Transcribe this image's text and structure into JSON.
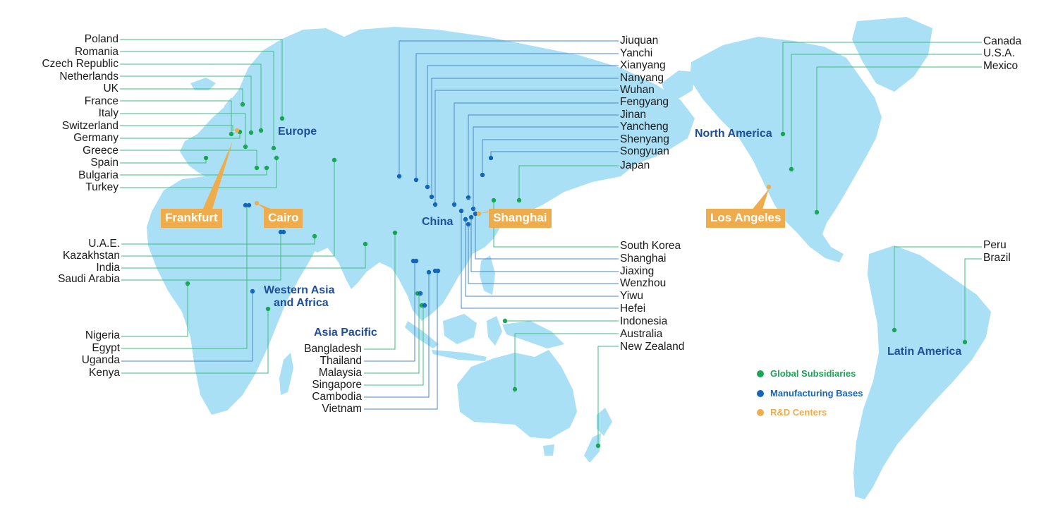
{
  "colors": {
    "ocean": "#ffffff",
    "land": "#a9e0f6",
    "subsidiary": "#1aa657",
    "manufacturing": "#1466b8",
    "rd": "#eeac4c",
    "leader_line_green": "#3dbb7f",
    "leader_line_blue": "#4a86c6",
    "region_text": "#1f4f9a"
  },
  "regions": {
    "europe": "Europe",
    "north_america": "North America",
    "china": "China",
    "western_asia_africa_line1": "Western Asia",
    "western_asia_africa_line2": "and Africa",
    "asia_pacific": "Asia Pacific",
    "latin_america": "Latin America"
  },
  "rd_centers": {
    "frankfurt": "Frankfurt",
    "cairo": "Cairo",
    "shanghai": "Shanghai",
    "los_angeles": "Los Angeles"
  },
  "europe_labels": [
    "Poland",
    "Romania",
    "Czech Republic",
    "Netherlands",
    "UK",
    "France",
    "Italy",
    "Switzerland",
    "Germany",
    "Greece",
    "Spain",
    "Bulgaria",
    "Turkey"
  ],
  "mideast_labels": [
    "U.A.E.",
    "Kazakhstan",
    "India",
    "Saudi Arabia"
  ],
  "africa_labels": [
    "Nigeria",
    "Egypt",
    "Uganda",
    "Kenya"
  ],
  "asia_pacific_labels": [
    "Bangladesh",
    "Thailand",
    "Malaysia",
    "Singapore",
    "Cambodia",
    "Vietnam"
  ],
  "china_north_labels": [
    "Jiuquan",
    "Yanchi",
    "Xianyang",
    "Nanyang",
    "Wuhan",
    "Fengyang",
    "Jinan",
    "Yancheng",
    "Shenyang",
    "Songyuan",
    "Japan"
  ],
  "china_south_labels": [
    "South Korea",
    "Shanghai",
    "Jiaxing",
    "Wenzhou",
    "Yiwu",
    "Hefei",
    "Indonesia",
    "Australia",
    "New Zealand"
  ],
  "americas_north_labels": [
    "Canada",
    "U.S.A.",
    "Mexico"
  ],
  "americas_south_labels": [
    "Peru",
    "Brazil"
  ],
  "legend": {
    "subsidiaries": "Global Subsidiaries",
    "manufacturing": "Manufacturing Bases",
    "rd": "R&D Centers"
  }
}
